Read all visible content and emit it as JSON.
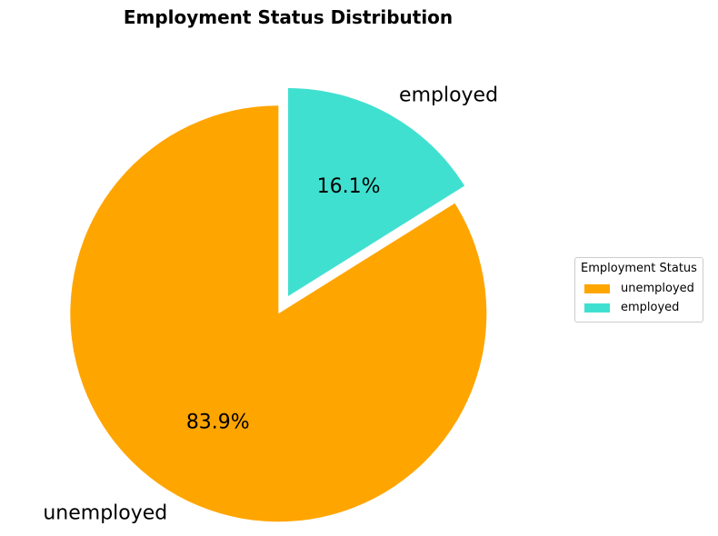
{
  "chart_data": {
    "type": "pie",
    "title": "Employment Status Distribution",
    "categories": [
      "unemployed",
      "employed"
    ],
    "values": [
      83.9,
      16.1
    ],
    "value_labels": [
      "83.9%",
      "16.1%"
    ],
    "colors": [
      "#FFA500",
      "#40E0D0"
    ],
    "exploded": [
      "unemployed"
    ],
    "legend": {
      "title": "Employment Status",
      "placement": "center-right",
      "entries": [
        "unemployed",
        "employed"
      ]
    }
  }
}
